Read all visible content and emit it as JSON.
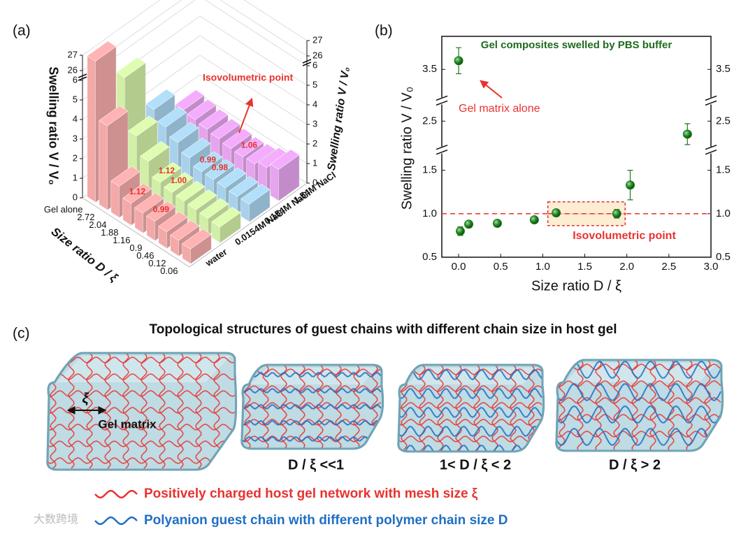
{
  "panel_labels": [
    "(a)",
    "(b)",
    "(c)"
  ],
  "chart_data": [
    {
      "type": "bar3d",
      "categories": [
        "Gel alone",
        "2.72",
        "2.04",
        "1.88",
        "1.16",
        "0.9",
        "0.46",
        "0.12",
        "0.06"
      ],
      "series": [
        {
          "name": "water",
          "color": "#f4a9a9",
          "values": [
            26.9,
            4.3,
            1.6,
            1.12,
            1.02,
            0.99,
            0.85,
            0.8,
            0.75
          ],
          "value_labels": [
            null,
            null,
            null,
            "1.12",
            null,
            "0.99",
            null,
            null,
            null
          ]
        },
        {
          "name": "0.0154M NaCl",
          "color": "#d2efa6",
          "values": [
            5.3,
            2.7,
            1.8,
            1.12,
            1.0,
            0.95,
            0.9,
            0.85,
            0.8
          ],
          "value_labels": [
            null,
            null,
            null,
            "1.12",
            "1.00",
            null,
            null,
            null,
            null
          ]
        },
        {
          "name": "0.154M NaCl",
          "color": "#a8d2ec",
          "values": [
            2.6,
            2.1,
            1.7,
            1.3,
            0.99,
            0.98,
            0.95,
            0.9,
            0.9
          ],
          "value_labels": [
            null,
            null,
            null,
            null,
            "0.99",
            "0.98",
            null,
            null,
            null
          ]
        },
        {
          "name": "1.54M NaCl",
          "color": "#e6a3ee",
          "values": [
            1.5,
            1.4,
            1.3,
            1.2,
            1.1,
            1.06,
            1.1,
            1.3,
            1.6
          ],
          "value_labels": [
            null,
            null,
            null,
            null,
            null,
            "1.06",
            null,
            null,
            null
          ]
        }
      ],
      "xlabel": "Size ratio D / ξ",
      "ylabel": "Swelling ratio V / V₀",
      "y2label": "Swelling ratio V / V₀",
      "ylim": [
        0,
        27
      ],
      "ybreak": [
        6,
        26
      ],
      "yticks": [
        0,
        1,
        2,
        3,
        4,
        5,
        6,
        26,
        27
      ],
      "annotation": "Isovolumetric point"
    },
    {
      "type": "scatter",
      "title": "Gel composites swelled by PBS buffer",
      "x": [
        0.0,
        0.02,
        0.12,
        0.46,
        0.9,
        1.16,
        1.88,
        2.04,
        2.72
      ],
      "values": [
        3.6,
        0.8,
        0.88,
        0.89,
        0.93,
        1.01,
        1.0,
        1.33,
        2.35
      ],
      "errors": [
        0.15,
        0.05,
        0.03,
        0.02,
        0.03,
        0.04,
        0.05,
        0.17,
        0.12
      ],
      "color": "#1e7a1e",
      "xlabel": "Size ratio D / ξ",
      "ylabel": "Swelling ratio V / V₀",
      "xlim": [
        -0.2,
        3
      ],
      "xticks": [
        {
          "value": 0,
          "label": "0.0"
        },
        0.5,
        {
          "value": 1,
          "label": "1.0"
        },
        1.5,
        {
          "value": 2,
          "label": "2.0"
        },
        2.5,
        {
          "value": 3,
          "label": "3.0"
        }
      ],
      "ysegments": [
        [
          0.5,
          1.62
        ],
        [
          2.28,
          2.62
        ],
        [
          3.25,
          3.88
        ]
      ],
      "yticks": [
        0.5,
        {
          "value": 1,
          "label": "1.0"
        },
        1.5,
        2.5,
        3.5
      ],
      "refline": {
        "value": 1,
        "color": "#e8322f"
      },
      "annotations": [
        "Gel matrix alone",
        "Isovolumetric point"
      ]
    }
  ],
  "panel_c": {
    "title": "Topological structures of guest chains with different chain size in host gel",
    "mesh_symbol": "ξ",
    "gel_label": "Gel matrix",
    "cases": [
      "D / ξ <<1",
      "1< D / ξ < 2",
      "D / ξ > 2"
    ],
    "legend": [
      {
        "text": "Positively charged host gel network with mesh size ξ",
        "color": "#e8322f"
      },
      {
        "text": "Polyanion guest chain with different polymer chain size D",
        "color": "#1f6fc4"
      }
    ]
  },
  "watermark": "大数跨境"
}
